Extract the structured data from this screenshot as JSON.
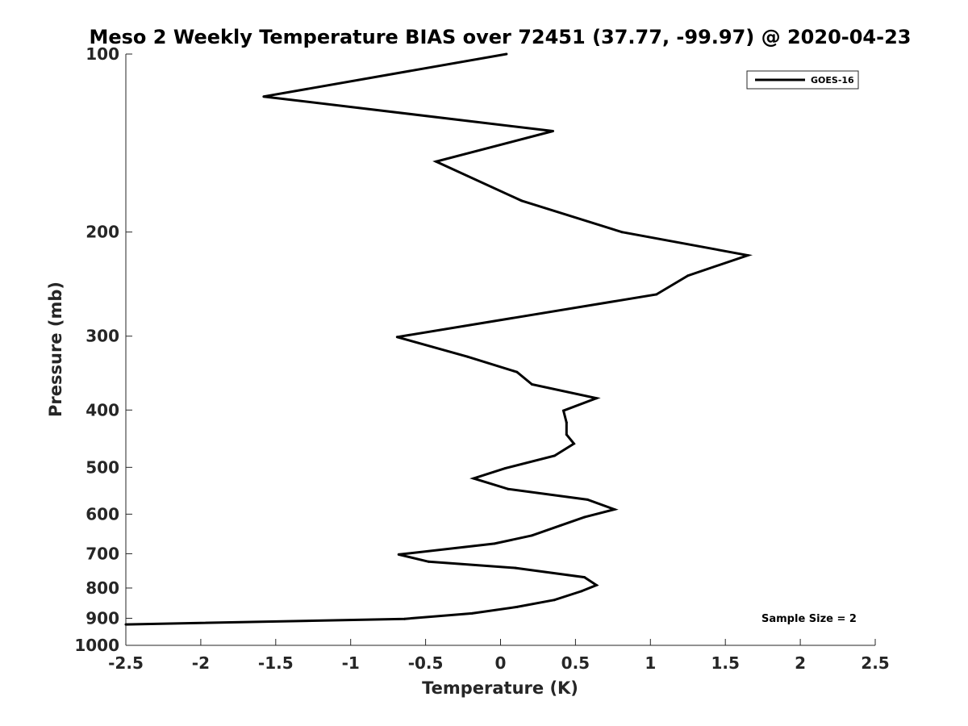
{
  "chart_data": {
    "type": "line",
    "title": "Meso 2 Weekly Temperature BIAS over 72451 (37.77, -99.97) @ 2020-04-23",
    "xlabel": "Temperature (K)",
    "ylabel": "Pressure (mb)",
    "xlim": [
      -2.5,
      2.5
    ],
    "ylim": [
      100,
      1000
    ],
    "y_scale": "log",
    "y_direction": "reversed",
    "x_ticks": [
      -2.5,
      -2,
      -1.5,
      -1,
      -0.5,
      0,
      0.5,
      1,
      1.5,
      2,
      2.5
    ],
    "x_tick_labels": [
      "-2.5",
      "-2",
      "-1.5",
      "-1",
      "-0.5",
      "0",
      "0.5",
      "1",
      "1.5",
      "2",
      "2.5"
    ],
    "y_ticks": [
      100,
      200,
      300,
      400,
      500,
      600,
      700,
      800,
      900,
      1000
    ],
    "y_tick_labels": [
      "100",
      "200",
      "300",
      "400",
      "500",
      "600",
      "700",
      "800",
      "900",
      "1000"
    ],
    "grid": false,
    "legend_position": "top-right",
    "series": [
      {
        "name": "GOES-16",
        "color": "#000000",
        "points": [
          {
            "x": 0.04,
            "p": 100
          },
          {
            "x": -1.58,
            "p": 118
          },
          {
            "x": 0.35,
            "p": 135
          },
          {
            "x": -0.43,
            "p": 152
          },
          {
            "x": 0.14,
            "p": 177
          },
          {
            "x": 0.81,
            "p": 200
          },
          {
            "x": 1.65,
            "p": 219
          },
          {
            "x": 1.25,
            "p": 237
          },
          {
            "x": 1.04,
            "p": 255
          },
          {
            "x": -0.69,
            "p": 301
          },
          {
            "x": -0.22,
            "p": 325
          },
          {
            "x": 0.11,
            "p": 345
          },
          {
            "x": 0.21,
            "p": 362
          },
          {
            "x": 0.64,
            "p": 382
          },
          {
            "x": 0.42,
            "p": 401
          },
          {
            "x": 0.44,
            "p": 420
          },
          {
            "x": 0.44,
            "p": 440
          },
          {
            "x": 0.49,
            "p": 456
          },
          {
            "x": 0.36,
            "p": 478
          },
          {
            "x": 0.03,
            "p": 502
          },
          {
            "x": -0.18,
            "p": 522
          },
          {
            "x": 0.05,
            "p": 544
          },
          {
            "x": 0.58,
            "p": 567
          },
          {
            "x": 0.76,
            "p": 589
          },
          {
            "x": 0.56,
            "p": 607
          },
          {
            "x": 0.4,
            "p": 627
          },
          {
            "x": 0.21,
            "p": 652
          },
          {
            "x": -0.04,
            "p": 673
          },
          {
            "x": -0.68,
            "p": 702
          },
          {
            "x": -0.48,
            "p": 722
          },
          {
            "x": 0.1,
            "p": 740
          },
          {
            "x": 0.56,
            "p": 767
          },
          {
            "x": 0.64,
            "p": 791
          },
          {
            "x": 0.54,
            "p": 810
          },
          {
            "x": 0.36,
            "p": 838
          },
          {
            "x": 0.11,
            "p": 861
          },
          {
            "x": -0.19,
            "p": 883
          },
          {
            "x": -0.64,
            "p": 902
          },
          {
            "x": -2.5,
            "p": 922
          }
        ]
      }
    ],
    "annotations": [
      "Sample Size = 2"
    ]
  }
}
